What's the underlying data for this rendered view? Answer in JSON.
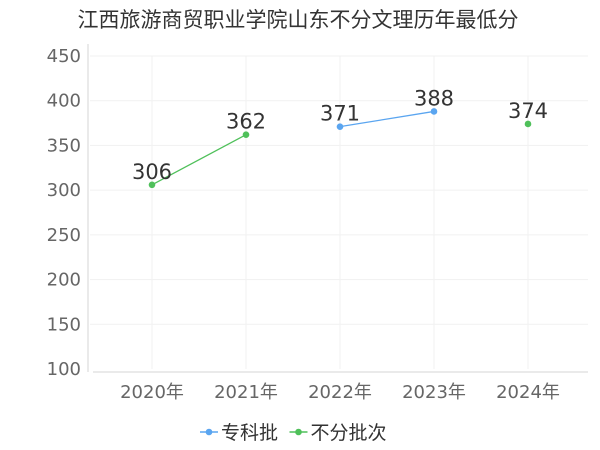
{
  "chart_data": {
    "type": "line",
    "title": "江西旅游商贸职业学院山东不分文理历年最低分",
    "xlabel": "",
    "ylabel": "",
    "categories": [
      "2020年",
      "2021年",
      "2022年",
      "2023年",
      "2024年"
    ],
    "ylim": [
      100,
      450
    ],
    "yticks": [
      100,
      150,
      200,
      250,
      300,
      350,
      400,
      450
    ],
    "grid": true,
    "legend_position": "bottom",
    "series": [
      {
        "name": "专科批",
        "color": "#5aa5f0",
        "values": [
          null,
          null,
          371,
          388,
          null
        ]
      },
      {
        "name": "不分批次",
        "color": "#4fc05a",
        "values": [
          306,
          362,
          null,
          null,
          374
        ]
      }
    ]
  }
}
